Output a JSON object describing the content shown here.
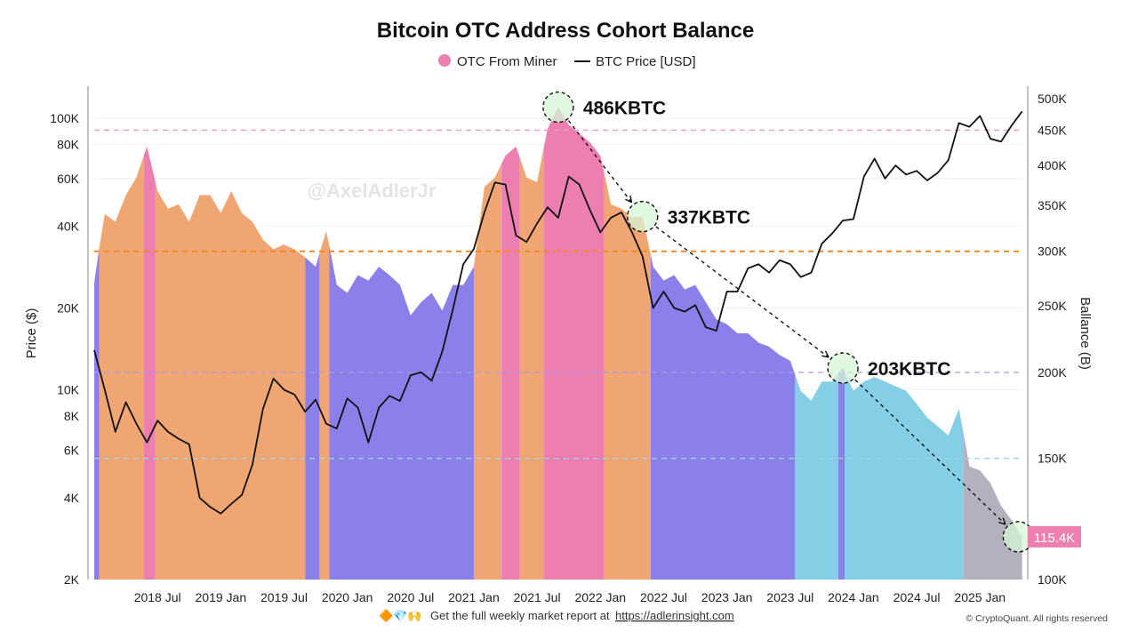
{
  "chart_data": {
    "type": "area",
    "title": "Bitcoin OTC Address Cohort Balance",
    "legend": {
      "placement": "top",
      "items": [
        {
          "label": "OTC From Miner",
          "color": "#ec7fb0",
          "marker": "circle"
        },
        {
          "label": "BTC Price [USD]",
          "color": "#111111",
          "marker": "line"
        }
      ]
    },
    "ylabel_left": "Price ($)",
    "ylabel_right": "Ballance (B)",
    "left_axis": {
      "scale": "log",
      "range": [
        2000,
        130000
      ],
      "ticks": [
        2000,
        4000,
        6000,
        8000,
        10000,
        20000,
        40000,
        60000,
        80000,
        100000
      ],
      "tick_labels": [
        "2K",
        "4K",
        "6K",
        "8K",
        "10K",
        "20K",
        "40K",
        "60K",
        "80K",
        "100K"
      ]
    },
    "right_axis": {
      "scale": "log",
      "range": [
        100,
        520
      ],
      "unit": "K",
      "ticks": [
        100,
        150,
        200,
        250,
        300,
        350,
        400,
        450,
        500
      ],
      "tick_labels": [
        "100K",
        "150K",
        "200K",
        "250K",
        "300K",
        "350K",
        "400K",
        "450K",
        "500K"
      ]
    },
    "x_axis": {
      "range": [
        "2018-01-01",
        "2025-05-10"
      ],
      "ticks": [
        "2018-07",
        "2019-01",
        "2019-07",
        "2020-01",
        "2020-07",
        "2021-01",
        "2021-07",
        "2022-01",
        "2022-07",
        "2023-01",
        "2023-07",
        "2024-01",
        "2024-07",
        "2025-01"
      ],
      "tick_labels": [
        "2018 Jul",
        "2019 Jan",
        "2019 Jul",
        "2020 Jan",
        "2020 Jul",
        "2021 Jan",
        "2021 Jul",
        "2022 Jan",
        "2022 Jul",
        "2023 Jan",
        "2023 Jul",
        "2024 Jan",
        "2024 Jul",
        "2025 Jan"
      ]
    },
    "grid": "horizontal",
    "series_fields": [
      "month",
      "balance_k",
      "btc_price_usd"
    ],
    "points": [
      [
        "2018-01",
        270,
        14000
      ],
      [
        "2018-02",
        340,
        10000
      ],
      [
        "2018-03",
        331,
        7000
      ],
      [
        "2018-04",
        362,
        9000
      ],
      [
        "2018-05",
        384,
        7500
      ],
      [
        "2018-06",
        426,
        6400
      ],
      [
        "2018-07",
        367,
        7700
      ],
      [
        "2018-08",
        346,
        7000
      ],
      [
        "2018-09",
        351,
        6600
      ],
      [
        "2018-10",
        331,
        6300
      ],
      [
        "2018-11",
        362,
        4000
      ],
      [
        "2018-12",
        362,
        3700
      ],
      [
        "2019-01",
        341,
        3500
      ],
      [
        "2019-02",
        367,
        3800
      ],
      [
        "2019-03",
        341,
        4100
      ],
      [
        "2019-04",
        331,
        5300
      ],
      [
        "2019-05",
        312,
        8500
      ],
      [
        "2019-06",
        302,
        11000
      ],
      [
        "2019-07",
        307,
        10000
      ],
      [
        "2019-08",
        302,
        9600
      ],
      [
        "2019-09",
        294,
        8300
      ],
      [
        "2019-10",
        285,
        9200
      ],
      [
        "2019-11",
        321,
        7500
      ],
      [
        "2019-12",
        268,
        7200
      ],
      [
        "2020-01",
        261,
        9300
      ],
      [
        "2020-02",
        277,
        8600
      ],
      [
        "2020-03",
        272,
        6400
      ],
      [
        "2020-04",
        285,
        8600
      ],
      [
        "2020-05",
        277,
        9500
      ],
      [
        "2020-06",
        268,
        9100
      ],
      [
        "2020-07",
        242,
        11300
      ],
      [
        "2020-08",
        253,
        11600
      ],
      [
        "2020-09",
        261,
        10800
      ],
      [
        "2020-10",
        246,
        13800
      ],
      [
        "2020-11",
        268,
        19700
      ],
      [
        "2020-12",
        268,
        29000
      ],
      [
        "2021-01",
        285,
        33000
      ],
      [
        "2021-02",
        372,
        45000
      ],
      [
        "2021-03",
        384,
        58000
      ],
      [
        "2021-04",
        413,
        57000
      ],
      [
        "2021-05",
        426,
        37000
      ],
      [
        "2021-06",
        384,
        35000
      ],
      [
        "2021-07",
        378,
        41000
      ],
      [
        "2021-08",
        452,
        47000
      ],
      [
        "2021-09",
        486,
        43000
      ],
      [
        "2021-10",
        458,
        61000
      ],
      [
        "2021-11",
        445,
        57000
      ],
      [
        "2021-12",
        432,
        46000
      ],
      [
        "2022-01",
        413,
        38000
      ],
      [
        "2022-02",
        351,
        43000
      ],
      [
        "2022-03",
        346,
        45000
      ],
      [
        "2022-04",
        336,
        38000
      ],
      [
        "2022-05",
        337,
        31000
      ],
      [
        "2022-06",
        285,
        20000
      ],
      [
        "2022-07",
        272,
        23000
      ],
      [
        "2022-08",
        277,
        20000
      ],
      [
        "2022-09",
        264,
        19400
      ],
      [
        "2022-10",
        268,
        20500
      ],
      [
        "2022-11",
        253,
        17000
      ],
      [
        "2022-12",
        239,
        16500
      ],
      [
        "2023-01",
        235,
        23000
      ],
      [
        "2023-02",
        228,
        23000
      ],
      [
        "2023-03",
        228,
        28000
      ],
      [
        "2023-04",
        221,
        29000
      ],
      [
        "2023-05",
        218,
        27000
      ],
      [
        "2023-06",
        212,
        30000
      ],
      [
        "2023-07",
        208,
        29000
      ],
      [
        "2023-08",
        188,
        26000
      ],
      [
        "2023-09",
        182,
        27000
      ],
      [
        "2023-10",
        194,
        34500
      ],
      [
        "2023-11",
        194,
        37700
      ],
      [
        "2023-12",
        203,
        42000
      ],
      [
        "2024-01",
        188,
        42500
      ],
      [
        "2024-02",
        194,
        61000
      ],
      [
        "2024-03",
        197,
        71000
      ],
      [
        "2024-04",
        194,
        60000
      ],
      [
        "2024-05",
        191,
        67000
      ],
      [
        "2024-06",
        188,
        62000
      ],
      [
        "2024-07",
        180,
        64000
      ],
      [
        "2024-08",
        172,
        59000
      ],
      [
        "2024-09",
        167,
        63000
      ],
      [
        "2024-10",
        162,
        70000
      ],
      [
        "2024-11",
        177,
        96000
      ],
      [
        "2024-12",
        146,
        93000
      ],
      [
        "2025-01",
        144,
        102000
      ],
      [
        "2025-02",
        138,
        84000
      ],
      [
        "2025-03",
        128,
        82000
      ],
      [
        "2025-04",
        122,
        94000
      ],
      [
        "2025-05",
        115.4,
        106000
      ]
    ],
    "regimes": [
      {
        "start": "2018-01-01",
        "end": "2018-01-15",
        "color": "#8b80ea"
      },
      {
        "start": "2018-01-15",
        "end": "2018-05-22",
        "color": "#f0a672"
      },
      {
        "start": "2018-05-22",
        "end": "2018-06-25",
        "color": "#ec7fb0"
      },
      {
        "start": "2018-06-25",
        "end": "2019-09-01",
        "color": "#f0a672"
      },
      {
        "start": "2019-09-01",
        "end": "2019-10-12",
        "color": "#8b80ea"
      },
      {
        "start": "2019-10-12",
        "end": "2019-11-10",
        "color": "#f0a672"
      },
      {
        "start": "2019-11-10",
        "end": "2021-01-01",
        "color": "#8b80ea"
      },
      {
        "start": "2021-01-01",
        "end": "2021-03-20",
        "color": "#f0a672"
      },
      {
        "start": "2021-03-20",
        "end": "2021-05-12",
        "color": "#ec7fb0"
      },
      {
        "start": "2021-05-12",
        "end": "2021-07-20",
        "color": "#f0a672"
      },
      {
        "start": "2021-07-20",
        "end": "2022-01-12",
        "color": "#ec7fb0"
      },
      {
        "start": "2022-01-12",
        "end": "2022-05-24",
        "color": "#f0a672"
      },
      {
        "start": "2022-05-24",
        "end": "2023-07-15",
        "color": "#8b80ea"
      },
      {
        "start": "2023-07-15",
        "end": "2023-11-18",
        "color": "#85cfe6"
      },
      {
        "start": "2023-11-18",
        "end": "2023-12-06",
        "color": "#8b80ea"
      },
      {
        "start": "2023-12-06",
        "end": "2024-11-15",
        "color": "#85cfe6"
      },
      {
        "start": "2024-11-15",
        "end": "2025-05-01",
        "color": "#b3b1bd"
      }
    ],
    "reference_lines": [
      {
        "balance_k": 450,
        "color": "#ec9ac3"
      },
      {
        "balance_k": 300,
        "color": "#f08a24"
      },
      {
        "balance_k": 200,
        "color": "#a99ae6"
      },
      {
        "balance_k": 150,
        "color": "#9fd2e6"
      }
    ],
    "annotations": [
      {
        "date": "2021-09-01",
        "balance_k": 486,
        "label": "486KBTC"
      },
      {
        "date": "2022-05-01",
        "balance_k": 337,
        "label": "337KBTC"
      },
      {
        "date": "2023-12-01",
        "balance_k": 203,
        "label": "203KBTC"
      },
      {
        "date": "2025-04-20",
        "balance_k": 115.4,
        "label": ""
      }
    ],
    "last_value_badge": {
      "label": "115.4K",
      "color": "#ec7fb0"
    }
  },
  "watermark": "@AxelAdlerJr",
  "footer": {
    "emojis": "🔶💎🙌",
    "text": "Get the full weekly market report at",
    "link": "https://adlerinsight.com",
    "copyright": "© CryptoQuant. All rights reserved"
  }
}
